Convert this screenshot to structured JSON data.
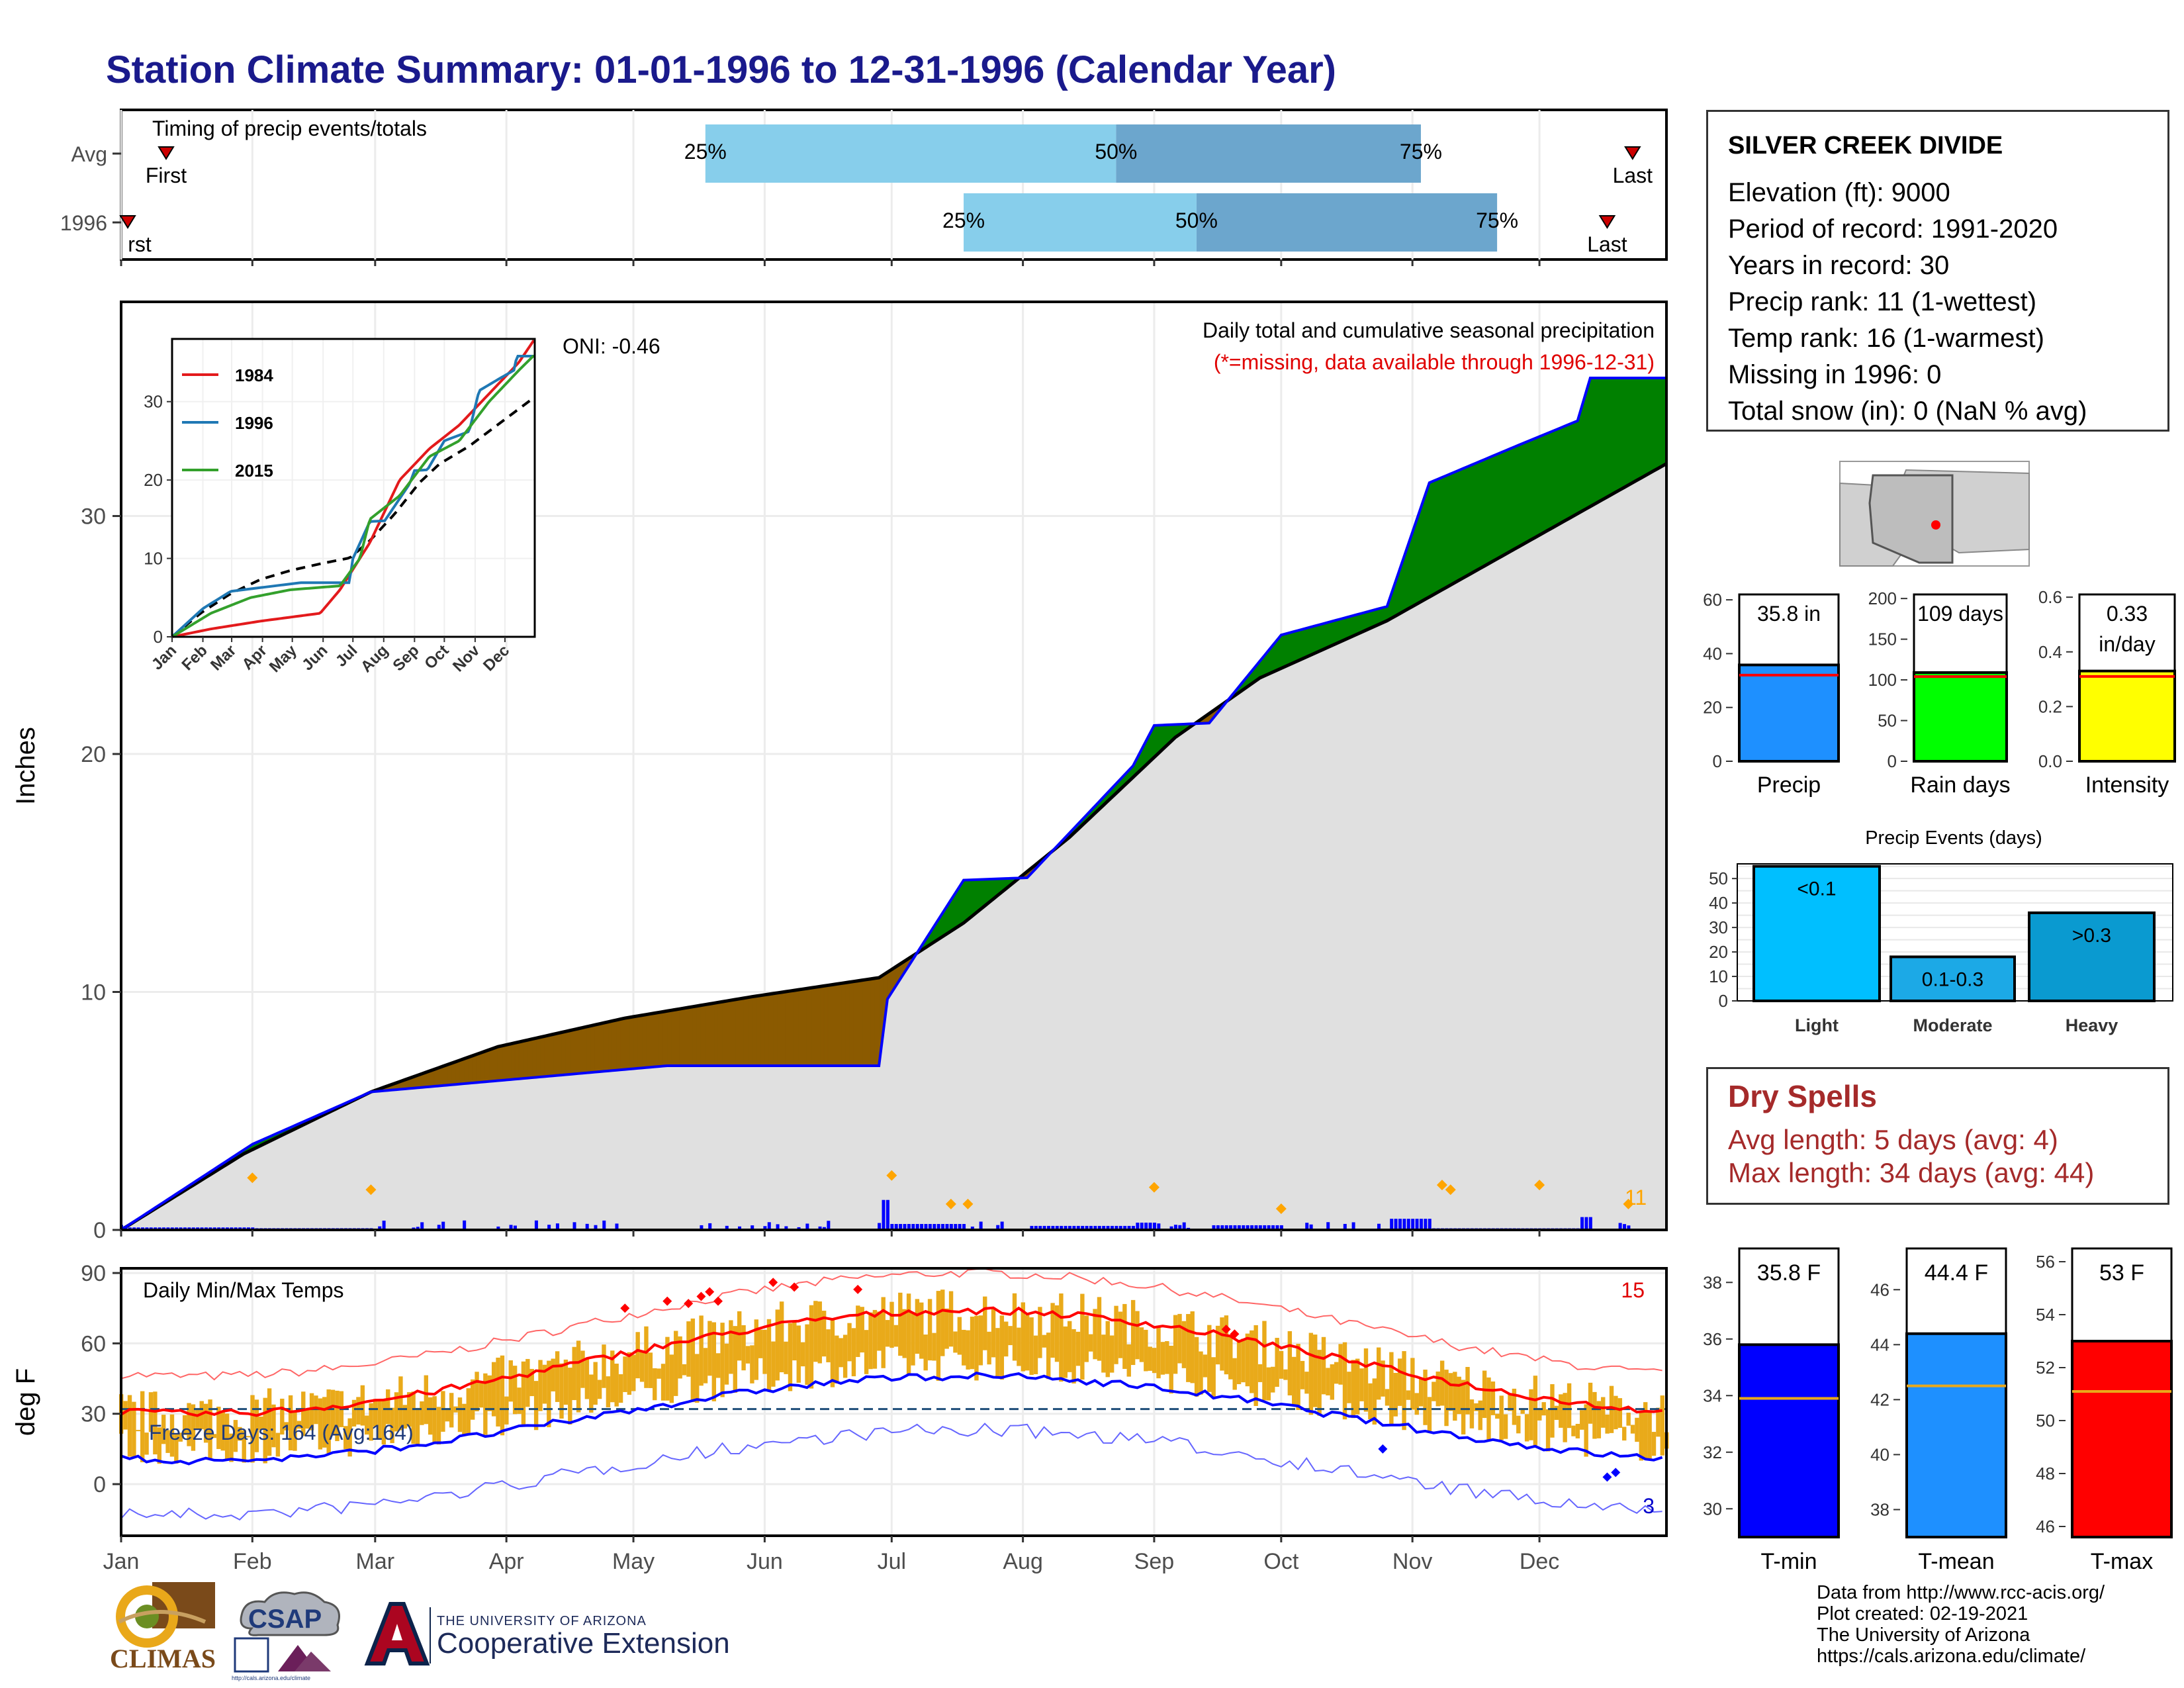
{
  "title": "Station Climate Summary: 01-01-1996 to 12-31-1996 (Calendar Year)",
  "colors": {
    "title": "#1a1a8c",
    "below_avg_fill": "#8B5A00",
    "above_avg_fill": "#008000",
    "avg_cumulative_fill": "#e0e0e0",
    "cumulative_line": "#0000ff",
    "daily_bars": "#0000ff",
    "tmax_avg": "#ff0000",
    "tmin_avg": "#0000ff",
    "temp_bars": "#e9aa1a",
    "timing_light": "#87ceeb",
    "timing_dark": "#6ca6cd"
  },
  "timing_panel": {
    "title": "Timing of precip events/totals",
    "rows": [
      {
        "label": "Avg",
        "first_label": "First",
        "last_label": "Last",
        "q25_label": "25%",
        "q50_label": "50%",
        "q75_label": "75%",
        "first_day": 6,
        "q25": 139,
        "q50": 236,
        "q75": 308,
        "last_day": 358
      },
      {
        "label": "1996",
        "first_label": "rst",
        "last_label": "Last",
        "q25_label": "25%",
        "q50_label": "50%",
        "q75_label": "75%",
        "first_day": 1,
        "q25": 200,
        "q50": 255,
        "q75": 326,
        "last_day": 352
      }
    ]
  },
  "precip_panel": {
    "ylabel": "Inches",
    "yticks": [
      "0",
      "10",
      "20",
      "30"
    ],
    "ylim": [
      0,
      39
    ],
    "header": "Daily total and cumulative seasonal precipitation",
    "missing_note": "(*=missing, data available through 1996-12-31)",
    "oni": "ONI: -0.46",
    "count_label": "11"
  },
  "inset": {
    "yticks": [
      "0",
      "10",
      "20",
      "30"
    ],
    "months": [
      "Jan",
      "Feb",
      "Mar",
      "Apr",
      "May",
      "Jun",
      "Jul",
      "Aug",
      "Sep",
      "Oct",
      "Nov",
      "Dec"
    ],
    "legend": [
      {
        "name": "1984",
        "color": "#e31a1c"
      },
      {
        "name": "1996",
        "color": "#1f78b4"
      },
      {
        "name": "2015",
        "color": "#33a02c"
      }
    ]
  },
  "temp_panel": {
    "ylabel": "deg F",
    "title": "Daily Min/Max Temps",
    "yticks": [
      "0",
      "30",
      "60",
      "90"
    ],
    "ylim": [
      -22,
      92
    ],
    "freeze_label": "Freeze Days: 164 (Avg:164)",
    "hot_count": "15",
    "cold_count": "3"
  },
  "months": [
    "Jan",
    "Feb",
    "Mar",
    "Apr",
    "May",
    "Jun",
    "Jul",
    "Aug",
    "Sep",
    "Oct",
    "Nov",
    "Dec"
  ],
  "station": {
    "name": "SILVER CREEK DIVIDE",
    "lines": [
      "Elevation (ft): 9000",
      "Period of record: 1991-2020",
      "Years in record: 30",
      "Precip rank: 11 (1-wettest)",
      "Temp rank: 16 (1-warmest)",
      "Missing in 1996: 0",
      "Total snow (in): 0 (NaN % avg)"
    ]
  },
  "mini_bars": [
    {
      "label": "Precip",
      "value_text": "35.8 in",
      "value": 35.8,
      "avg": 32,
      "ymax": 62,
      "ticks": [
        "0",
        "20",
        "40",
        "60"
      ],
      "tickvals": [
        0,
        20,
        40,
        60
      ],
      "color": "#1e90ff"
    },
    {
      "label": "Rain days",
      "value_text": "109 days",
      "value": 109,
      "avg": 104,
      "ymax": 205,
      "ticks": [
        "0",
        "50",
        "100",
        "150",
        "200"
      ],
      "tickvals": [
        0,
        50,
        100,
        150,
        200
      ],
      "color": "#00ff00"
    },
    {
      "label": "Intensity",
      "value_text": "0.33",
      "value_text2": "in/day",
      "value": 0.33,
      "avg": 0.31,
      "ymax": 0.61,
      "ticks": [
        "0.0",
        "0.2",
        "0.4",
        "0.6"
      ],
      "tickvals": [
        0,
        0.2,
        0.4,
        0.6
      ],
      "color": "#ffff00"
    }
  ],
  "precip_events": {
    "title": "Precip Events (days)",
    "yticks": [
      "0",
      "10",
      "20",
      "30",
      "40",
      "50"
    ],
    "ymax": 56,
    "bars": [
      {
        "name": "Light",
        "value": 55,
        "label": "<0.1",
        "color": "#00bfff"
      },
      {
        "name": "Moderate",
        "value": 18,
        "label": "0.1-0.3",
        "color": "#1ca9e6"
      },
      {
        "name": "Heavy",
        "value": 36,
        "label": ">0.3",
        "color": "#0a9ad0"
      }
    ]
  },
  "dry_spells": {
    "title": "Dry Spells",
    "avg_line": "Avg length: 5 days (avg: 4)",
    "max_line": "Max length: 34 days (avg: 44)"
  },
  "temp_bars": [
    {
      "label": "T-min",
      "value_text": "35.8 F",
      "value": 35.8,
      "avg": 33.9,
      "ymin": 29,
      "ymax": 39.2,
      "ticks": [
        "30",
        "32",
        "34",
        "36",
        "38"
      ],
      "tickvals": [
        30,
        32,
        34,
        36,
        38
      ],
      "color": "#0000ff"
    },
    {
      "label": "T-mean",
      "value_text": "44.4 F",
      "value": 44.4,
      "avg": 42.5,
      "ymin": 37,
      "ymax": 47.5,
      "ticks": [
        "38",
        "40",
        "42",
        "44",
        "46"
      ],
      "tickvals": [
        38,
        40,
        42,
        44,
        46
      ],
      "color": "#1e90ff"
    },
    {
      "label": "T-max",
      "value_text": "53 F",
      "value": 53,
      "avg": 51.1,
      "ymin": 45.6,
      "ymax": 56.5,
      "ticks": [
        "46",
        "48",
        "50",
        "52",
        "54",
        "56"
      ],
      "tickvals": [
        46,
        48,
        50,
        52,
        54,
        56
      ],
      "color": "#ff0000"
    }
  ],
  "footer": {
    "lines": [
      "Data from http://www.rcc-acis.org/",
      "Plot created: 02-19-2021",
      "The University of Arizona",
      "https://cals.arizona.edu/climate/"
    ]
  },
  "logos": {
    "climas": "CLIMAS",
    "csap": "CSAP",
    "csap_url": "http://cals.arizona.edu/climate",
    "ua_line1": "THE UNIVERSITY OF ARIZONA",
    "ua_line2": "Cooperative Extension"
  },
  "chart_data": {
    "type": "area",
    "title": "Daily total and cumulative seasonal precipitation",
    "ylabel": "Inches",
    "ylim": [
      0,
      39
    ],
    "x_unit": "day of year 1996",
    "series": [
      {
        "name": "1996",
        "points": [
          [
            1,
            0
          ],
          [
            32,
            3.6
          ],
          [
            60,
            5.8
          ],
          [
            130,
            6.9
          ],
          [
            180,
            6.9
          ],
          [
            182,
            9.7
          ],
          [
            200,
            14.7
          ],
          [
            215,
            14.8
          ],
          [
            240,
            19.5
          ],
          [
            245,
            21.2
          ],
          [
            258,
            21.3
          ],
          [
            275,
            25.0
          ],
          [
            300,
            26.2
          ],
          [
            310,
            31.4
          ],
          [
            330,
            32.9
          ],
          [
            345,
            34.0
          ],
          [
            348,
            35.8
          ],
          [
            366,
            35.8
          ]
        ]
      }
    ],
    "avg_points": [
      [
        1,
        0
      ],
      [
        30,
        3.2
      ],
      [
        60,
        5.8
      ],
      [
        90,
        7.7
      ],
      [
        120,
        8.9
      ],
      [
        150,
        9.8
      ],
      [
        180,
        10.6
      ],
      [
        200,
        12.9
      ],
      [
        225,
        16.5
      ],
      [
        250,
        20.7
      ],
      [
        270,
        23.2
      ],
      [
        300,
        25.6
      ],
      [
        330,
        28.6
      ],
      [
        366,
        32.2
      ]
    ]
  }
}
